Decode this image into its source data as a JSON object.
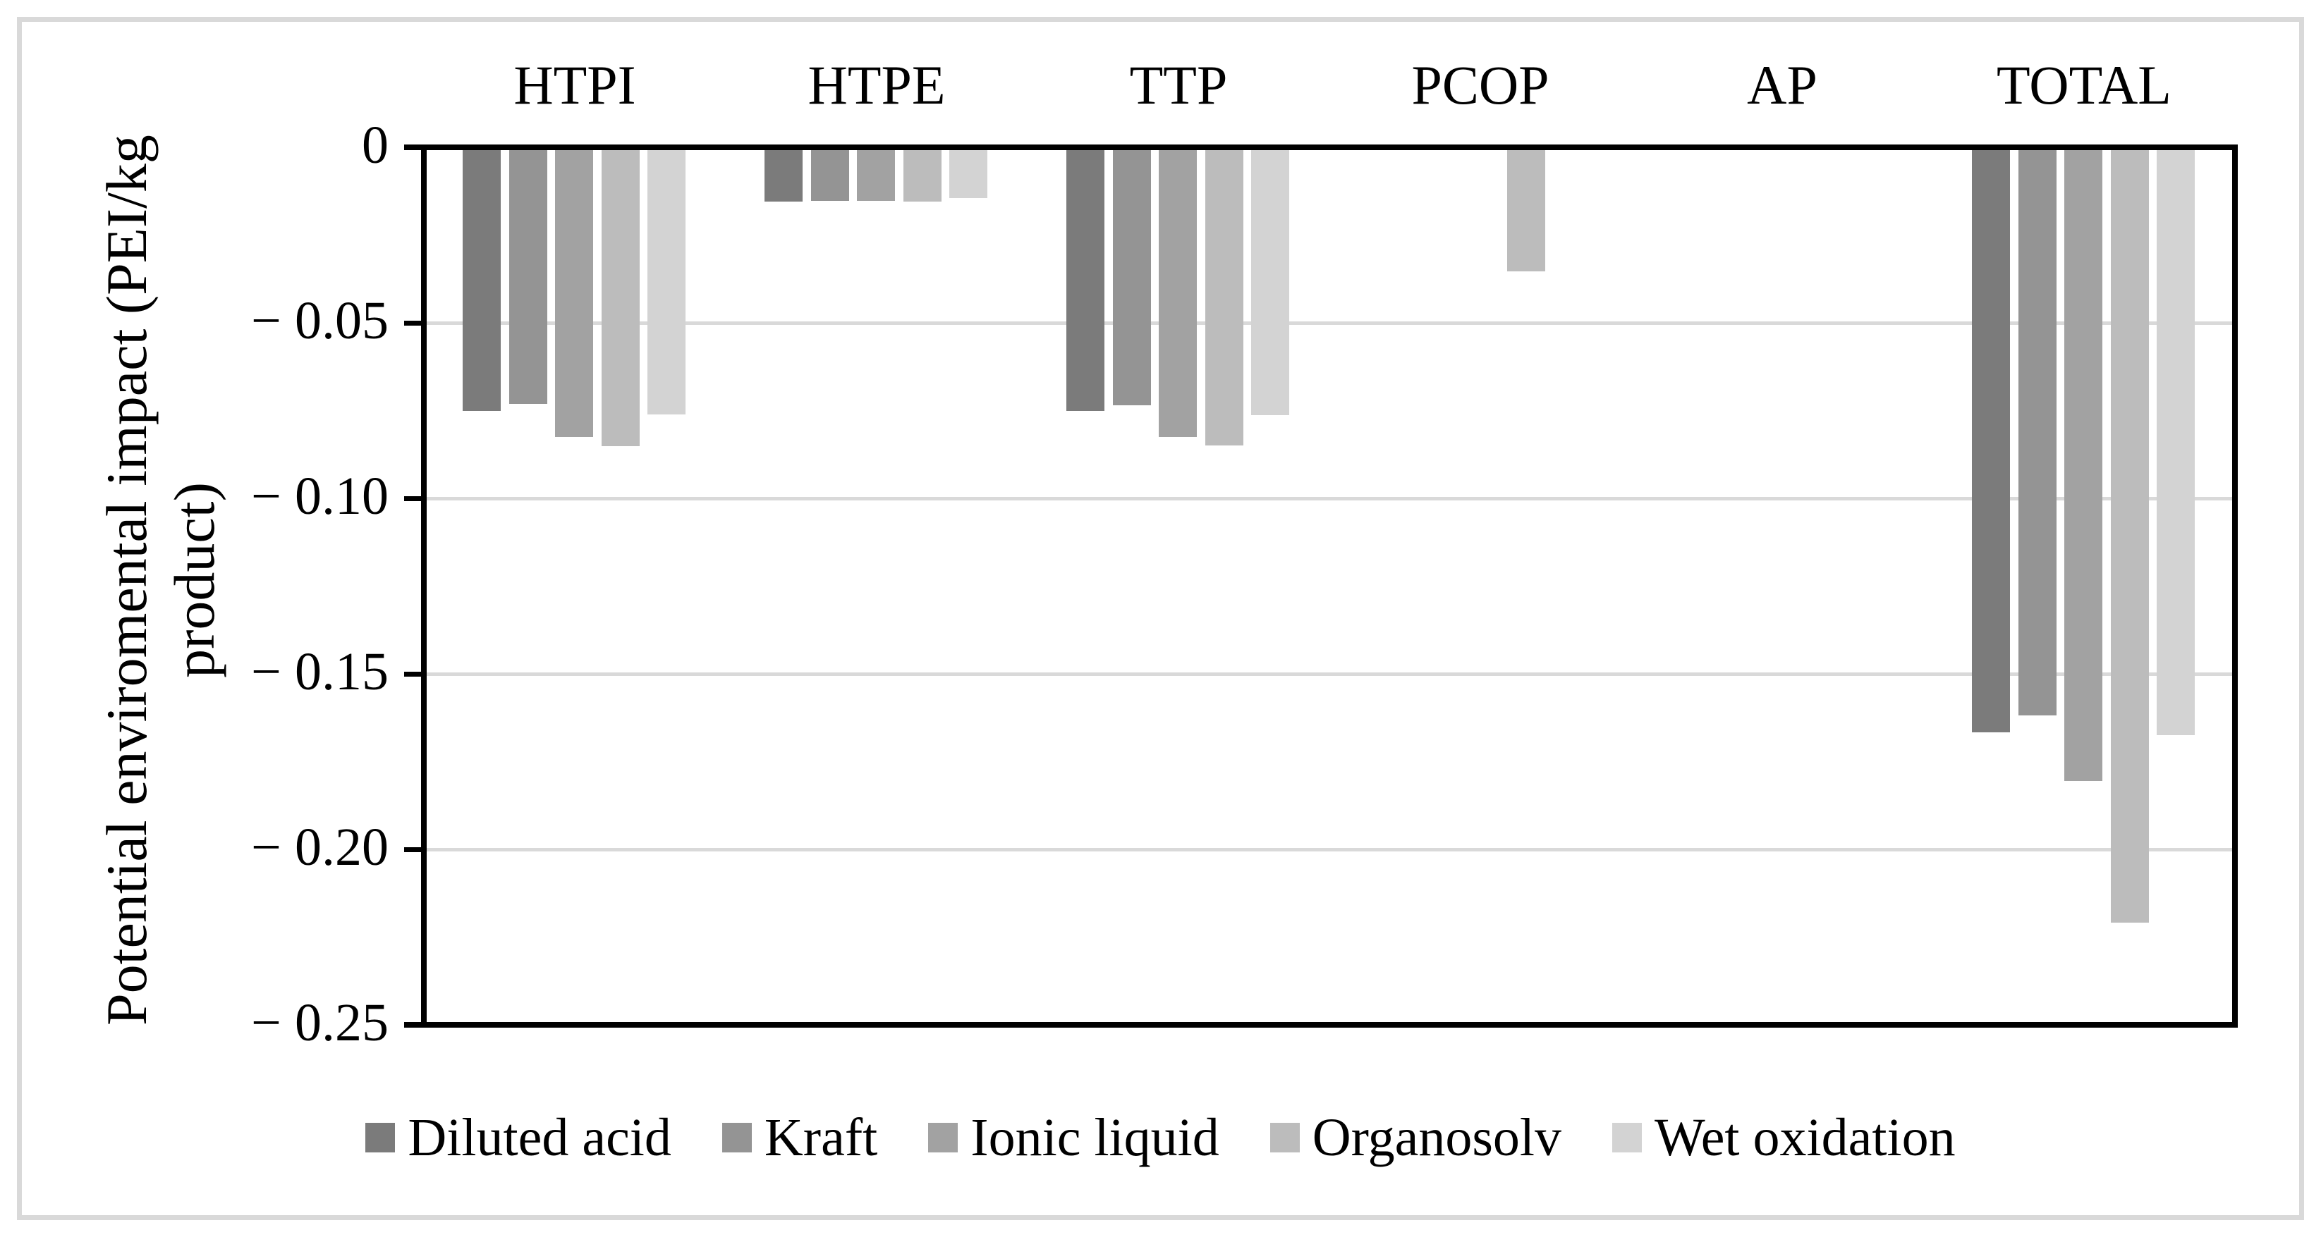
{
  "figure": {
    "ylabel_line1": "Potential enviromental impact (PEI/kg",
    "ylabel_line2": "product)"
  },
  "chart_data": {
    "type": "bar",
    "title": "",
    "xlabel": "",
    "ylabel": "Potential enviromental impact (PEI/kg product)",
    "categories": [
      "HTPI",
      "HTPE",
      "TTP",
      "PCOP",
      "AP",
      "TOTAL"
    ],
    "series": [
      {
        "name": "Diluted acid",
        "color": "#7b7b7b",
        "values": [
          -0.0752,
          -0.0155,
          -0.0751,
          0,
          0,
          -0.1667
        ]
      },
      {
        "name": "Kraft",
        "color": "#949494",
        "values": [
          -0.073,
          -0.0153,
          -0.0734,
          0,
          0,
          -0.1618
        ]
      },
      {
        "name": "Ionic liquid",
        "color": "#a2a2a2",
        "values": [
          -0.0825,
          -0.0152,
          -0.0826,
          0,
          0,
          -0.1806
        ]
      },
      {
        "name": "Organosolv",
        "color": "#bcbcbc",
        "values": [
          -0.0852,
          -0.0154,
          -0.085,
          -0.0354,
          0,
          -0.2209
        ]
      },
      {
        "name": "Wet oxidation",
        "color": "#d3d3d3",
        "values": [
          -0.0762,
          -0.0145,
          -0.0763,
          0,
          0,
          -0.1674
        ]
      }
    ],
    "ylim": [
      -0.25,
      0
    ],
    "yticks": [
      0,
      -0.05,
      -0.1,
      -0.15,
      -0.2,
      -0.25
    ],
    "ytick_labels": [
      "0",
      "− 0.05",
      "− 0.10",
      "− 0.15",
      "− 0.20",
      "− 0.25"
    ],
    "grid": true,
    "legend_position": "bottom",
    "colors": {
      "axis": "#000000",
      "gridline": "#d9d9d9",
      "figure_border": "#d9d9d9",
      "background": "#ffffff"
    }
  }
}
